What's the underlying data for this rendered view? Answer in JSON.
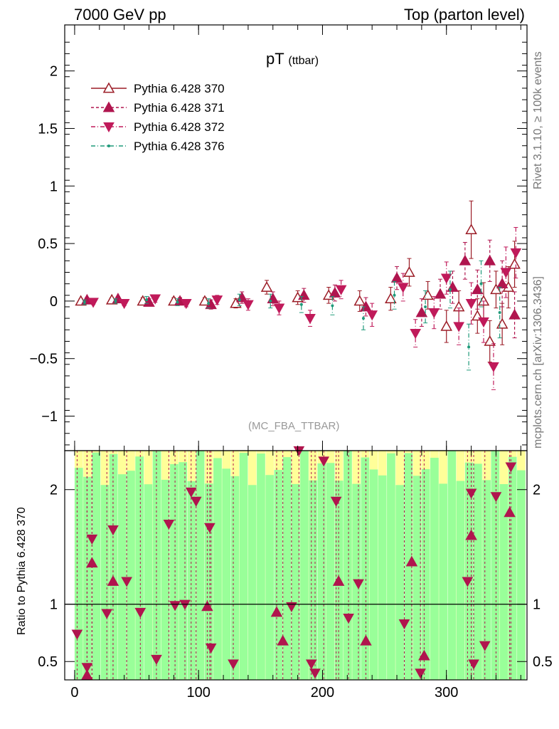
{
  "header": {
    "left": "7000 GeV pp",
    "right": "Top (parton level)"
  },
  "side_labels": {
    "rivet": "Rivet 3.1.10, ≥ 100k events",
    "mcplots": "mcplots.cern.ch [arXiv:1306.3436]"
  },
  "chart_data": [
    {
      "type": "scatter",
      "title": "pT",
      "title_sub": "(ttbar)",
      "annotation": "(MC_FBA_TTBAR)",
      "xlim": [
        -8,
        365
      ],
      "ylim": [
        -1.3,
        2.4
      ],
      "yticks": [
        -1,
        -0.5,
        0,
        0.5,
        1,
        1.5,
        2
      ],
      "ytick_labels": [
        "−1",
        "−0.5",
        "0",
        "0.5",
        "1",
        "1.5",
        "2"
      ],
      "xticks": [
        0,
        100,
        200,
        300
      ],
      "xtick_labels": [
        "0",
        "100",
        "200",
        "300"
      ],
      "legend_position": "top-left",
      "series": [
        {
          "name": "Pythia 6.428 370",
          "color": "#9b1c26",
          "marker": "triangle-up-open",
          "line": "solid",
          "x": [
            5,
            30,
            55,
            80,
            105,
            130,
            155,
            180,
            205,
            230,
            255,
            270,
            285,
            300,
            310,
            320,
            325,
            330,
            335,
            340,
            345,
            350,
            355
          ],
          "y": [
            0.0,
            0.01,
            0.0,
            0.0,
            0.0,
            -0.02,
            0.12,
            0.03,
            0.05,
            0.0,
            0.02,
            0.25,
            0.05,
            -0.22,
            -0.05,
            0.62,
            -0.13,
            0.0,
            -0.35,
            0.1,
            -0.2,
            0.12,
            0.32
          ],
          "err": [
            0.02,
            0.02,
            0.03,
            0.03,
            0.03,
            0.04,
            0.06,
            0.06,
            0.07,
            0.09,
            0.1,
            0.12,
            0.12,
            0.14,
            0.14,
            0.25,
            0.15,
            0.16,
            0.18,
            0.16,
            0.18,
            0.18,
            0.2
          ]
        },
        {
          "name": "Pythia 6.428 371",
          "color": "#b0154e",
          "marker": "triangle-up",
          "line": "dashed",
          "x": [
            10,
            35,
            60,
            85,
            110,
            135,
            160,
            185,
            210,
            235,
            260,
            280,
            295,
            305,
            315,
            325,
            335,
            345,
            355
          ],
          "y": [
            0.01,
            0.02,
            -0.01,
            0.0,
            -0.03,
            0.03,
            0.02,
            0.05,
            0.07,
            -0.05,
            0.2,
            -0.1,
            0.06,
            0.12,
            0.35,
            0.1,
            0.35,
            0.15,
            -0.12
          ],
          "err": [
            0.02,
            0.02,
            0.03,
            0.03,
            0.04,
            0.05,
            0.06,
            0.06,
            0.07,
            0.08,
            0.1,
            0.12,
            0.13,
            0.14,
            0.16,
            0.17,
            0.18,
            0.2,
            0.2
          ]
        },
        {
          "name": "Pythia 6.428 372",
          "color": "#c01a5a",
          "marker": "triangle-down",
          "line": "dash-dot",
          "x": [
            15,
            40,
            65,
            90,
            115,
            140,
            165,
            190,
            215,
            240,
            265,
            275,
            290,
            300,
            310,
            320,
            330,
            338,
            348,
            356
          ],
          "y": [
            -0.01,
            -0.02,
            0.02,
            -0.02,
            0.01,
            -0.03,
            -0.06,
            -0.15,
            0.1,
            -0.12,
            0.12,
            -0.28,
            -0.1,
            0.2,
            -0.22,
            -0.02,
            -0.18,
            -0.57,
            0.25,
            0.42
          ],
          "err": [
            0.02,
            0.02,
            0.03,
            0.03,
            0.04,
            0.05,
            0.06,
            0.07,
            0.08,
            0.1,
            0.12,
            0.12,
            0.14,
            0.14,
            0.16,
            0.18,
            0.18,
            0.2,
            0.22,
            0.22
          ]
        },
        {
          "name": "Pythia 6.428 376",
          "color": "#1f9a7a",
          "marker": "dot",
          "line": "dash-dot",
          "x": [
            8,
            33,
            58,
            83,
            108,
            133,
            158,
            183,
            208,
            233,
            258,
            283,
            303,
            318,
            328,
            343
          ],
          "y": [
            -0.01,
            0.0,
            0.01,
            -0.01,
            -0.02,
            0.01,
            0.0,
            -0.03,
            -0.04,
            -0.15,
            0.05,
            -0.05,
            0.1,
            -0.4,
            0.15,
            -0.1
          ],
          "err": [
            0.02,
            0.02,
            0.03,
            0.03,
            0.04,
            0.05,
            0.06,
            0.07,
            0.08,
            0.1,
            0.12,
            0.14,
            0.16,
            0.2,
            0.2,
            0.22
          ]
        }
      ]
    },
    {
      "type": "scatter",
      "ylabel": "Ratio to Pythia 6.428 370",
      "xlim": [
        -8,
        365
      ],
      "ylim": [
        0.34,
        2.34
      ],
      "yticks": [
        0.5,
        1,
        2
      ],
      "ytick_labels": [
        "0.5",
        "1",
        "2"
      ],
      "reference_line": 1,
      "band_colors": {
        "outer": "#ffff99",
        "inner": "#99ff99"
      },
      "series": [
        {
          "name": "Pythia 6.428 372",
          "color": "#b0154e",
          "marker": "triangle-down",
          "x": [
            2,
            10,
            14,
            26,
            31,
            42,
            53,
            66,
            76,
            81,
            89,
            94,
            98,
            109,
            110,
            128,
            175,
            181,
            191,
            194,
            201,
            211,
            221,
            229,
            266,
            279,
            317,
            320,
            322,
            331,
            340,
            352
          ],
          "y": [
            0.74,
            0.45,
            1.57,
            0.92,
            1.65,
            1.2,
            0.93,
            0.52,
            1.7,
            0.99,
            1.0,
            1.98,
            1.9,
            1.67,
            0.62,
            0.48,
            0.98,
            2.34,
            0.48,
            0.4,
            2.25,
            1.9,
            0.88,
            1.18,
            0.83,
            0.4,
            1.2,
            1.97,
            0.48,
            0.64,
            1.94,
            2.2
          ]
        },
        {
          "name": "Pythia 6.428 371",
          "color": "#b0154e",
          "marker": "triangle-up",
          "x": [
            10,
            14,
            31,
            107,
            163,
            168,
            213,
            235,
            272,
            282,
            320,
            351
          ],
          "y": [
            0.38,
            1.36,
            1.2,
            0.98,
            0.93,
            0.68,
            1.2,
            0.68,
            1.37,
            0.55,
            1.6,
            1.8
          ]
        }
      ]
    }
  ]
}
